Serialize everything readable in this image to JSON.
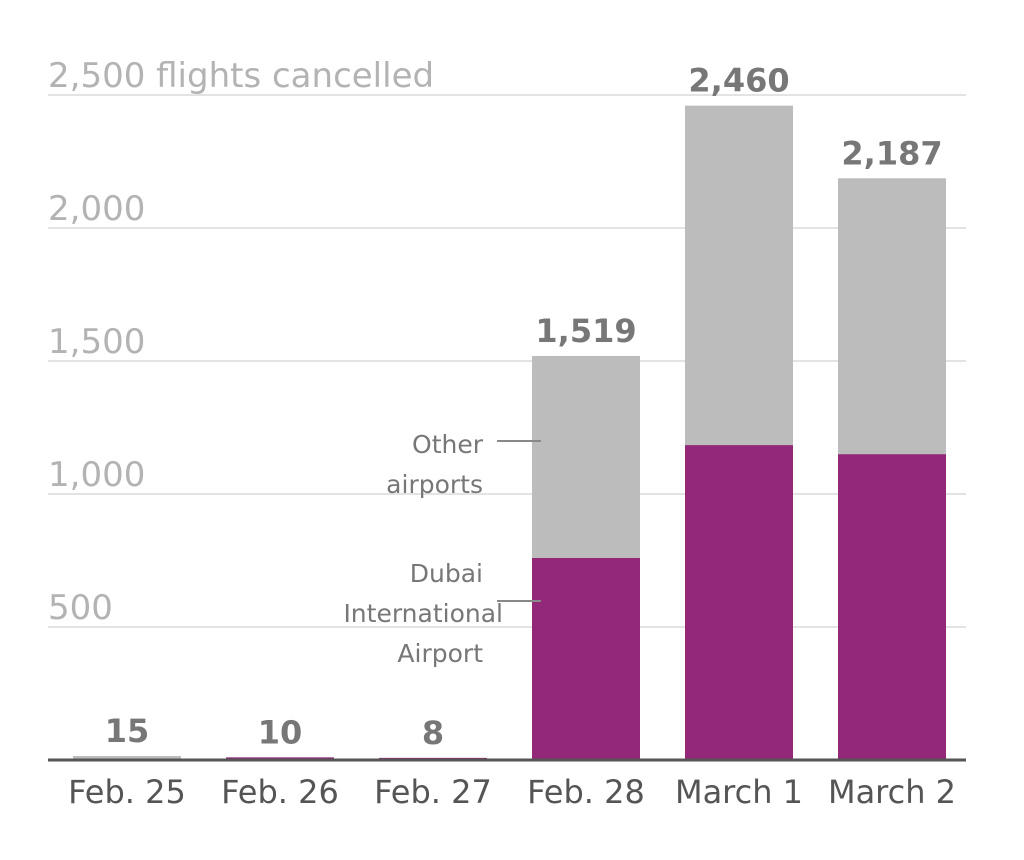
{
  "chart_data": {
    "type": "bar",
    "stacked": true,
    "title": "",
    "ylabel": "flights cancelled",
    "ylim": [
      0,
      2500
    ],
    "yticks": [
      500,
      1000,
      1500,
      2000,
      2500
    ],
    "ytick_labels": [
      "500",
      "1,000",
      "1,500",
      "2,000",
      "2,500 flights cancelled"
    ],
    "grid": true,
    "categories": [
      "Feb. 25",
      "Feb. 26",
      "Feb. 27",
      "Feb. 28",
      "March 1",
      "March 2"
    ],
    "series": [
      {
        "name": "Dubai International Airport",
        "color": "#922877",
        "values": [
          5,
          10,
          8,
          760,
          1184,
          1150
        ]
      },
      {
        "name": "Other airports",
        "color": "#bcbcbc",
        "values": [
          10,
          0,
          0,
          759,
          1276,
          1037
        ]
      }
    ],
    "totals": [
      15,
      10,
      8,
      1519,
      2460,
      2187
    ],
    "total_labels": [
      "15",
      "10",
      "8",
      "1,519",
      "2,460",
      "2,187"
    ],
    "annotations": {
      "other": [
        "Other",
        "airports"
      ],
      "dubai": [
        "Dubai",
        "International",
        "Airport"
      ]
    }
  }
}
